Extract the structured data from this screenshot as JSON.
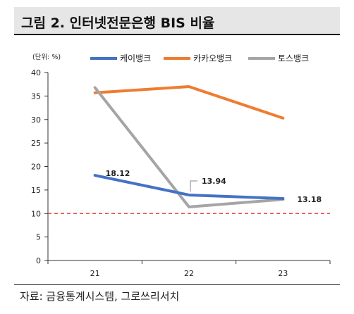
{
  "figure": {
    "title": "그림 2. 인터넷전문은행 BIS 비율",
    "source": "자료: 금융통계시스템, 그로쓰리서치"
  },
  "chart_data": {
    "type": "line",
    "unit_label": "(단위: %)",
    "categories": [
      "21",
      "22",
      "23"
    ],
    "ylim": [
      0,
      40
    ],
    "yticks": [
      0,
      5,
      10,
      15,
      20,
      25,
      30,
      35,
      40
    ],
    "grid": false,
    "legend_position": "top",
    "series": [
      {
        "name": "케이뱅크",
        "color": "#4472c4",
        "values": [
          18.12,
          13.94,
          13.18
        ]
      },
      {
        "name": "카카오뱅크",
        "color": "#ed7d31",
        "values": [
          35.7,
          37.0,
          30.3
        ]
      },
      {
        "name": "토스뱅크",
        "color": "#a5a5a5",
        "values": [
          36.8,
          11.4,
          13.0
        ]
      }
    ],
    "data_labels": [
      {
        "series": 0,
        "index": 0,
        "text": "18.12"
      },
      {
        "series": 0,
        "index": 1,
        "text": "13.94"
      },
      {
        "series": 0,
        "index": 2,
        "text": "13.18"
      }
    ],
    "reference_line": {
      "value": 10,
      "color": "#e03030",
      "style": "dashed"
    }
  }
}
